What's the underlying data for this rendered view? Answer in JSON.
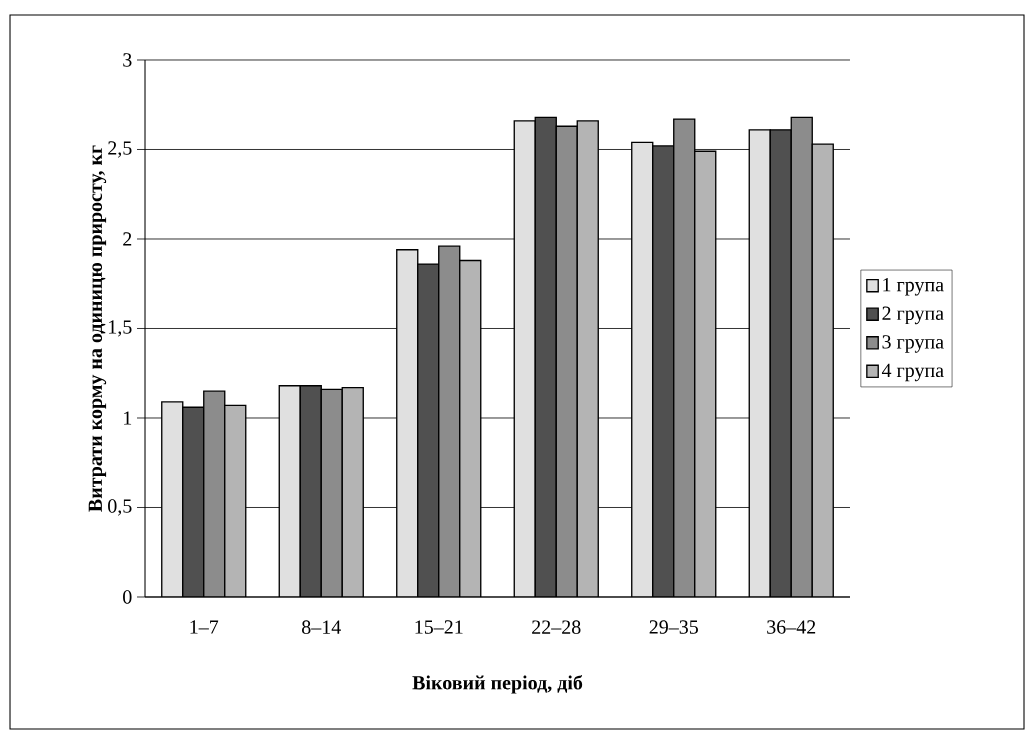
{
  "chart_data": {
    "type": "bar",
    "xlabel": "Віковий період, діб",
    "ylabel": "Витрати корму на одиницю приросту, кг",
    "categories": [
      "1–7",
      "8–14",
      "15–21",
      "22–28",
      "29–35",
      "36–42"
    ],
    "series": [
      {
        "name": "1 група",
        "color": "#e0e0e0",
        "values": [
          1.09,
          1.18,
          1.94,
          2.66,
          2.54,
          2.61
        ]
      },
      {
        "name": "2 група",
        "color": "#505050",
        "values": [
          1.06,
          1.18,
          1.86,
          2.68,
          2.52,
          2.61
        ]
      },
      {
        "name": "3 група",
        "color": "#8c8c8c",
        "values": [
          1.15,
          1.16,
          1.96,
          2.63,
          2.67,
          2.68
        ]
      },
      {
        "name": "4 група",
        "color": "#b4b4b4",
        "values": [
          1.07,
          1.17,
          1.88,
          2.66,
          2.49,
          2.53
        ]
      }
    ],
    "ylim": [
      0,
      3
    ],
    "yticks": [
      0,
      {
        "value": 0.5,
        "label": "0,5"
      },
      1,
      {
        "value": 1.5,
        "label": "1,5"
      },
      2,
      {
        "value": 2.5,
        "label": "2,5"
      },
      3
    ],
    "grid": "y",
    "legend": "right"
  }
}
